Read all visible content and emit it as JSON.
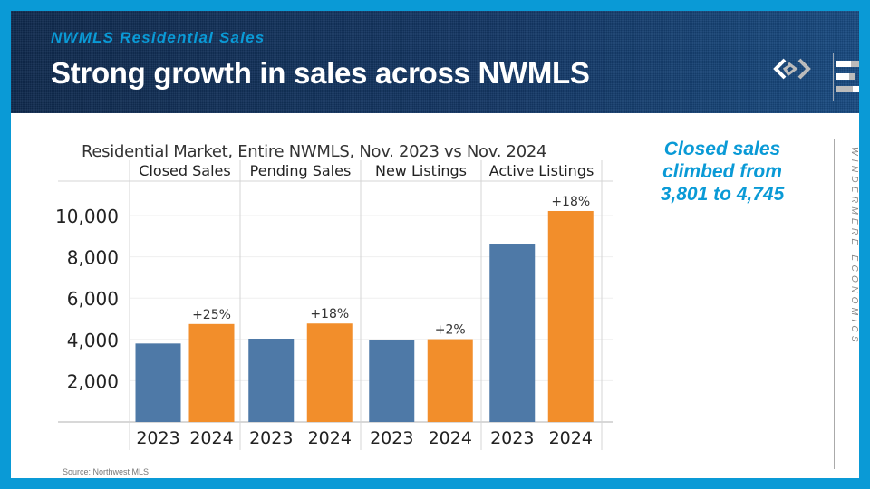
{
  "header": {
    "kicker": "NWMLS Residential Sales",
    "title": "Strong growth in sales across NWMLS"
  },
  "logo": {
    "brand_icon": "windermere-w-icon",
    "brand_e_icon": "windermere-economics-e-icon"
  },
  "callout": {
    "lines": [
      "Closed sales",
      "climbed from",
      "3,801 to 4,745"
    ]
  },
  "side_brand": "WINDERMERE ECONOMICS",
  "source": "Source: Northwest MLS",
  "colors": {
    "accent": "#0a9ad6",
    "bar_2023": "#4e79a7",
    "bar_2024": "#f28e2b",
    "header_bg": "#143866"
  },
  "chart_data": {
    "type": "bar",
    "title": "Residential Market, Entire NWMLS, Nov. 2023 vs Nov. 2024",
    "panels": [
      "Closed Sales",
      "Pending Sales",
      "New Listings",
      "Active Listings"
    ],
    "categories": [
      "2023",
      "2024"
    ],
    "series": [
      {
        "name": "Closed Sales",
        "values": [
          3801,
          4745
        ],
        "change_label": "+25%"
      },
      {
        "name": "Pending Sales",
        "values": [
          4035,
          4770
        ],
        "change_label": "+18%"
      },
      {
        "name": "New Listings",
        "values": [
          3950,
          4010
        ],
        "change_label": "+2%"
      },
      {
        "name": "Active Listings",
        "values": [
          8640,
          10220
        ],
        "change_label": "+18%"
      }
    ],
    "yticks": [
      2000,
      4000,
      6000,
      8000,
      10000
    ],
    "ytick_labels": [
      "2,000",
      "4,000",
      "6,000",
      "8,000",
      "10,000"
    ],
    "ylim": [
      0,
      11600
    ],
    "xlabel": "",
    "ylabel": "",
    "grid": true,
    "legend": "none"
  }
}
